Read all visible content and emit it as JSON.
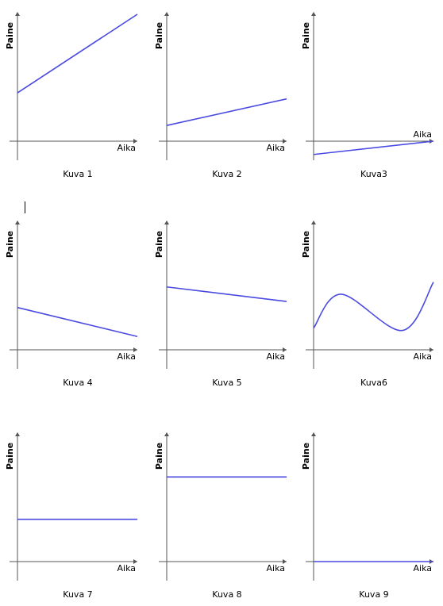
{
  "chart_data": [
    {
      "type": "line",
      "caption": "Kuva 1",
      "ylabel": "Paine",
      "xlabel": "Aika",
      "xlim": [
        0,
        10
      ],
      "ylim": [
        -1.5,
        10.5
      ],
      "x": [
        0,
        10
      ],
      "y": [
        4,
        10.5
      ],
      "grid": false
    },
    {
      "type": "line",
      "caption": "Kuva 2",
      "ylabel": "Paine",
      "xlabel": "Aika",
      "xlim": [
        0,
        10
      ],
      "ylim": [
        -1.5,
        10.5
      ],
      "x": [
        0,
        10
      ],
      "y": [
        1.3,
        3.5
      ],
      "grid": false
    },
    {
      "type": "line",
      "caption": "Kuva3",
      "ylabel": "Paine",
      "xlabel": "Aika",
      "xlim": [
        0,
        10
      ],
      "ylim": [
        -1.5,
        10.5
      ],
      "x": [
        0,
        10
      ],
      "y": [
        -1.1,
        0
      ],
      "grid": false
    },
    {
      "type": "line",
      "caption": "Kuva 4",
      "ylabel": "Paine",
      "xlabel": "Aika",
      "xlim": [
        0,
        10
      ],
      "ylim": [
        -1.5,
        10.5
      ],
      "x": [
        0,
        10
      ],
      "y": [
        3.5,
        1.1
      ],
      "grid": false
    },
    {
      "type": "line",
      "caption": "Kuva 5",
      "ylabel": "Paine",
      "xlabel": "Aika",
      "xlim": [
        0,
        10
      ],
      "ylim": [
        -1.5,
        10.5
      ],
      "x": [
        0,
        10
      ],
      "y": [
        5.2,
        4.0
      ],
      "grid": false
    },
    {
      "type": "line",
      "caption": "Kuva6",
      "ylabel": "Paine",
      "xlabel": "Aika",
      "xlim": [
        0,
        10
      ],
      "ylim": [
        -1.5,
        10.5
      ],
      "x": [
        0,
        2.3,
        7.4,
        10
      ],
      "y": [
        1.8,
        4.6,
        1.6,
        5.6
      ],
      "smooth": true,
      "grid": false
    },
    {
      "type": "line",
      "caption": "Kuva 7",
      "ylabel": "Paine",
      "xlabel": "Aika",
      "xlim": [
        0,
        10
      ],
      "ylim": [
        -1.5,
        10.5
      ],
      "x": [
        0,
        10
      ],
      "y": [
        3.5,
        3.5
      ],
      "grid": false
    },
    {
      "type": "line",
      "caption": "Kuva 8",
      "ylabel": "Paine",
      "xlabel": "Aika",
      "xlim": [
        0,
        10
      ],
      "ylim": [
        -1.5,
        10.5
      ],
      "x": [
        0,
        10
      ],
      "y": [
        7,
        7
      ],
      "grid": false
    },
    {
      "type": "line",
      "caption": "Kuva 9",
      "ylabel": "Paine",
      "xlabel": "Aika",
      "xlim": [
        0,
        10
      ],
      "ylim": [
        -1.5,
        10.5
      ],
      "x": [
        0,
        10
      ],
      "y": [
        0,
        0
      ],
      "grid": false
    }
  ],
  "colors": {
    "line": "#4a4ae0",
    "axis": "#555555",
    "text": "#000000"
  }
}
